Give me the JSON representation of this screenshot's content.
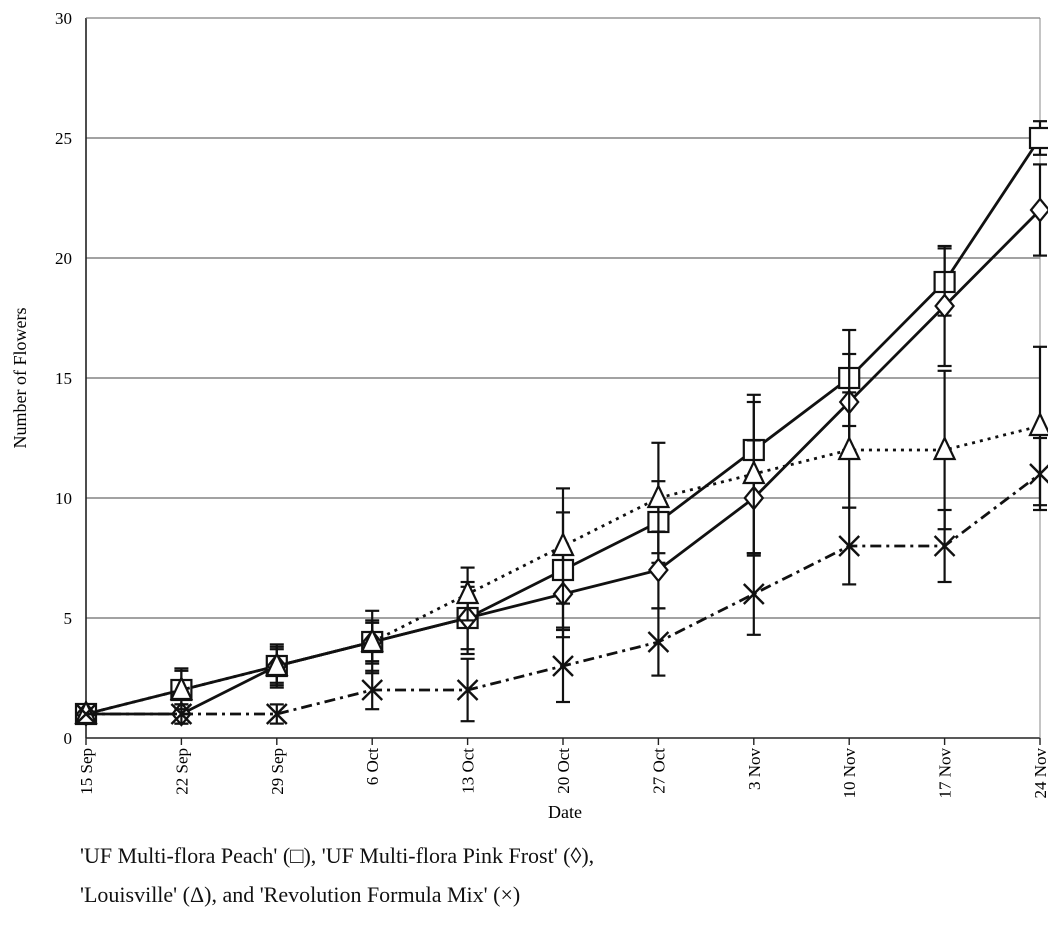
{
  "chart_data": {
    "type": "line",
    "xlabel": "Date",
    "ylabel": "Number of Flowers",
    "ylim": [
      0,
      30
    ],
    "yticks": [
      0,
      5,
      10,
      15,
      20,
      25,
      30
    ],
    "categories": [
      "15 Sep",
      "22 Sep",
      "29 Sep",
      "6 Oct",
      "13 Oct",
      "20 Oct",
      "27 Oct",
      "3 Nov",
      "10 Nov",
      "17 Nov",
      "24 Nov"
    ],
    "grid": "horizontal",
    "series": [
      {
        "marker": "square",
        "line": "solid",
        "values": [
          1,
          2,
          3,
          4,
          5,
          7,
          9,
          12,
          15,
          19,
          25
        ],
        "err": [
          0,
          0.9,
          0.8,
          0.9,
          1.3,
          2.4,
          1.7,
          2.0,
          2.0,
          1.4,
          0.7
        ]
      },
      {
        "marker": "diamond",
        "line": "solid",
        "values": [
          1,
          1,
          3,
          4,
          5,
          6,
          7,
          10,
          14,
          18,
          22
        ],
        "err": [
          0,
          0.4,
          0.9,
          0.8,
          1.5,
          1.8,
          1.6,
          2.4,
          2.0,
          2.5,
          1.9
        ]
      },
      {
        "marker": "triangle",
        "line": "dotted",
        "values": [
          1,
          2,
          3,
          4,
          6,
          8,
          10,
          11,
          12,
          12,
          13
        ],
        "err": [
          0,
          0.8,
          0.7,
          1.3,
          1.1,
          2.4,
          2.3,
          3.3,
          2.4,
          3.3,
          3.3
        ]
      },
      {
        "marker": "x",
        "line": "dashdot",
        "values": [
          1,
          1,
          1,
          2,
          2,
          3,
          4,
          6,
          8,
          8,
          11
        ],
        "err": [
          0,
          0.4,
          0.4,
          0.8,
          1.3,
          1.5,
          1.4,
          1.7,
          1.6,
          1.5,
          1.5
        ]
      }
    ]
  },
  "caption": {
    "line1": "'UF Multi-flora  Peach' (□), 'UF Multi-flora Pink Frost' (◊),",
    "line2": "'Louisville' (Δ), and 'Revolution Formula Mix' (×)"
  }
}
